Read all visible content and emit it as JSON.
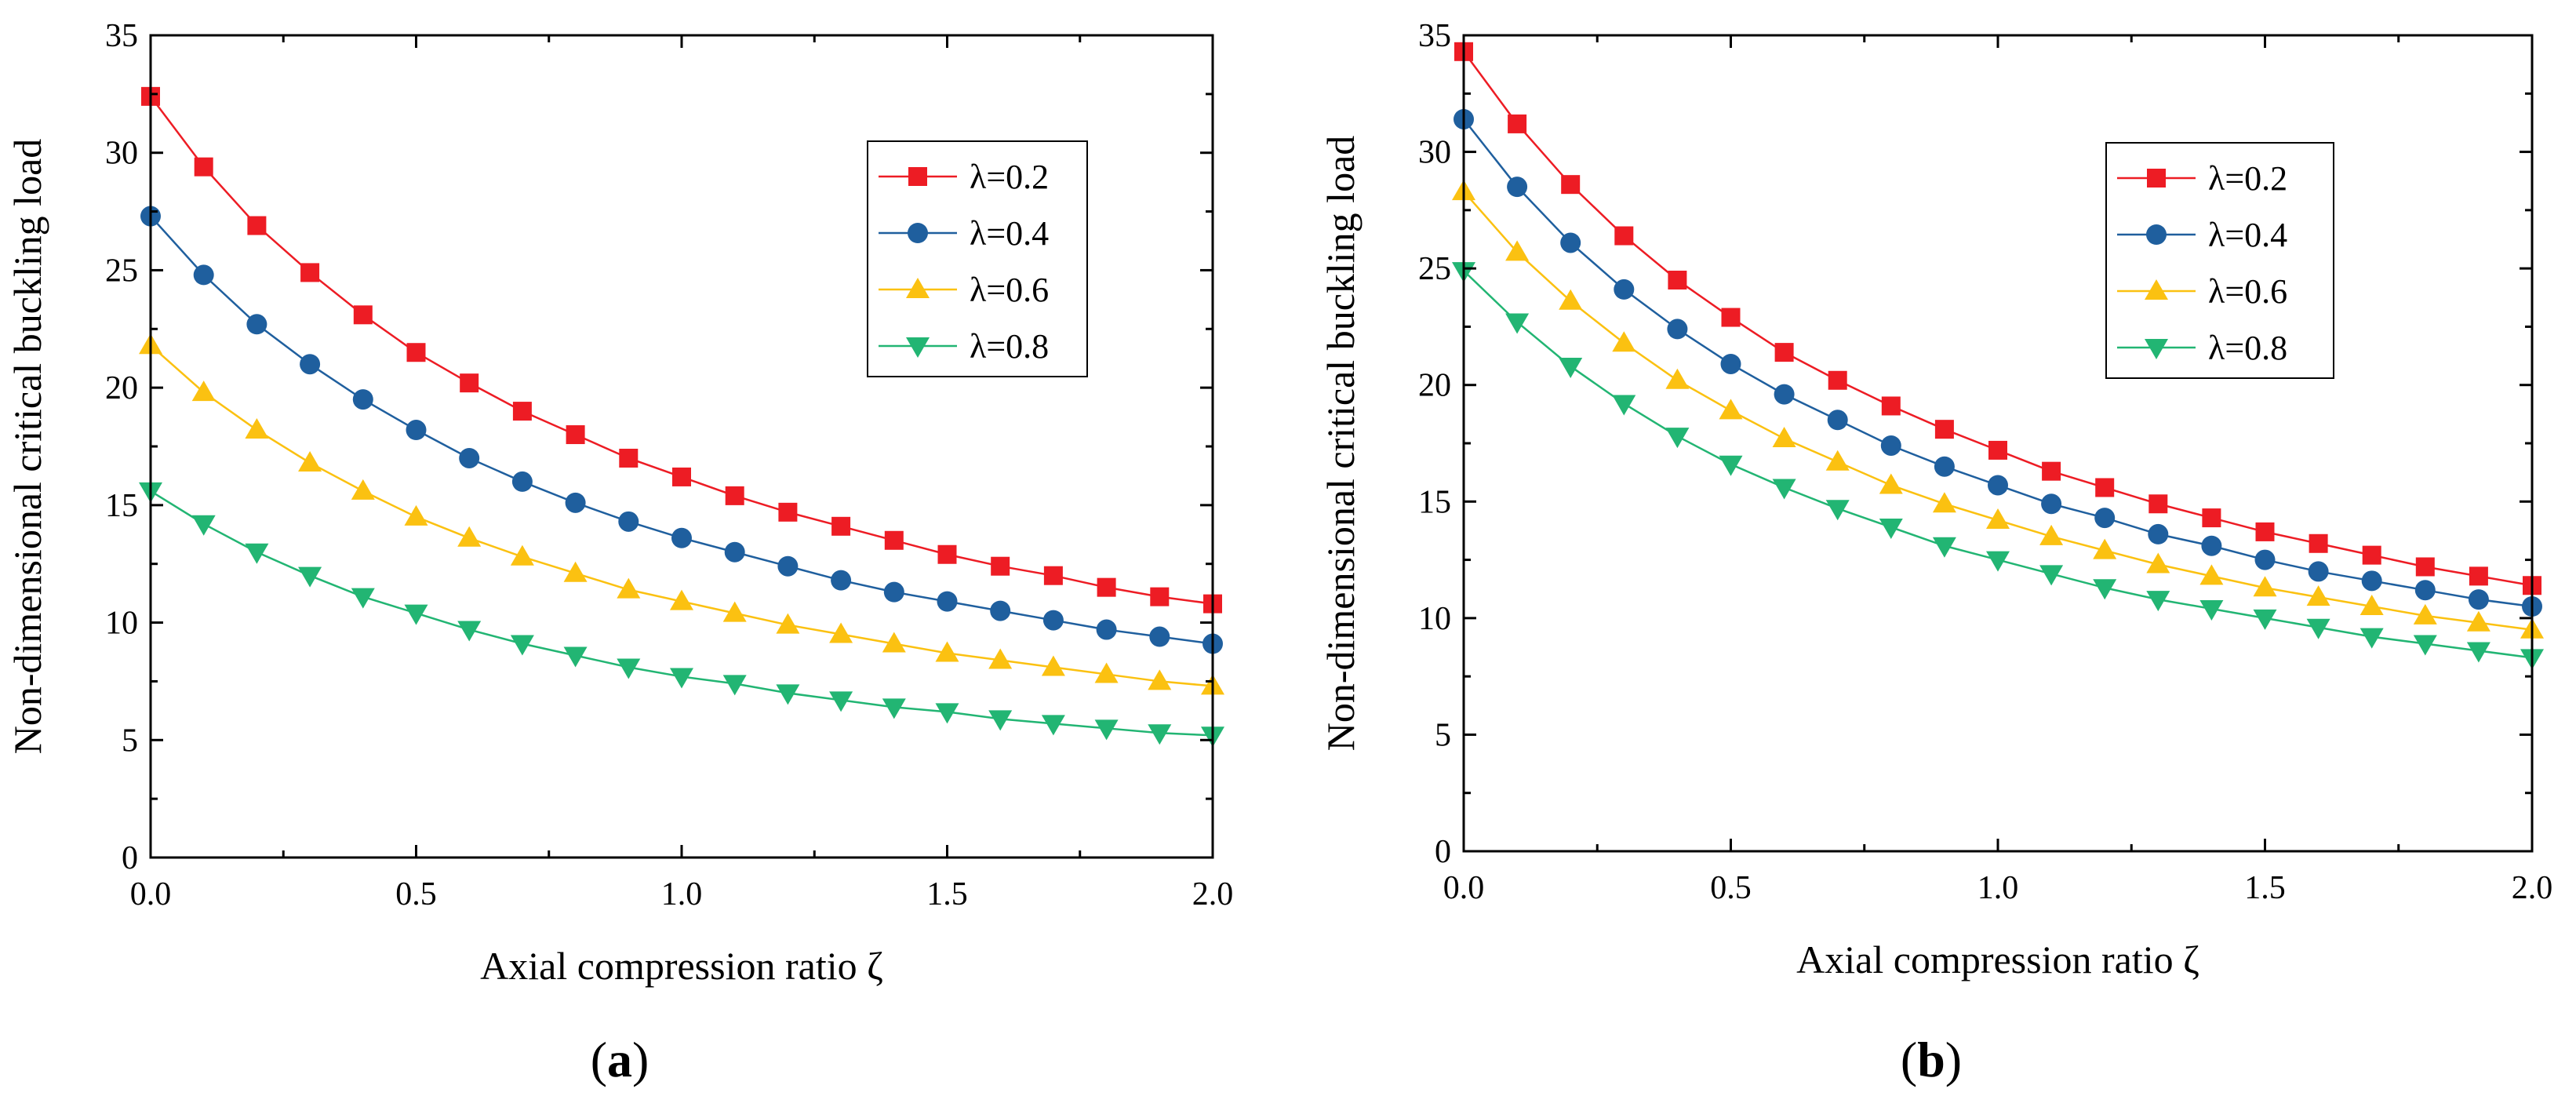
{
  "colors": {
    "red": "#ed1c24",
    "blue": "#1f5f9e",
    "yellow": "#fbc111",
    "green": "#22b573",
    "axis": "#000000"
  },
  "chart_data": [
    {
      "type": "line",
      "panel_label": {
        "open": "(",
        "letter": "a",
        "close": ")"
      },
      "xlabel": "Axial compression ratio ζ",
      "ylabel": "Non-dimensional critical buckling load",
      "xlim": [
        0,
        2.0
      ],
      "ylim": [
        0,
        35
      ],
      "xticks": [
        0.0,
        0.5,
        1.0,
        1.5,
        2.0
      ],
      "xtick_labels": [
        "0.0",
        "0.5",
        "1.0",
        "1.5",
        "2.0"
      ],
      "yticks": [
        0,
        5,
        10,
        15,
        20,
        25,
        30,
        35
      ],
      "ytick_labels": [
        "0",
        "5",
        "10",
        "15",
        "20",
        "25",
        "30",
        "35"
      ],
      "legend_position": "top-right",
      "x": [
        0.0,
        0.1,
        0.2,
        0.3,
        0.4,
        0.5,
        0.6,
        0.7,
        0.8,
        0.9,
        1.0,
        1.1,
        1.2,
        1.3,
        1.4,
        1.5,
        1.6,
        1.7,
        1.8,
        1.9,
        2.0
      ],
      "series": [
        {
          "name": "λ=0.2",
          "color": "#ed1c24",
          "marker": "square",
          "values": [
            32.4,
            29.4,
            26.9,
            24.9,
            23.1,
            21.5,
            20.2,
            19.0,
            18.0,
            17.0,
            16.2,
            15.4,
            14.7,
            14.1,
            13.5,
            12.9,
            12.4,
            12.0,
            11.5,
            11.1,
            10.8
          ]
        },
        {
          "name": "λ=0.4",
          "color": "#1f5f9e",
          "marker": "circle",
          "values": [
            27.3,
            24.8,
            22.7,
            21.0,
            19.5,
            18.2,
            17.0,
            16.0,
            15.1,
            14.3,
            13.6,
            13.0,
            12.4,
            11.8,
            11.3,
            10.9,
            10.5,
            10.1,
            9.7,
            9.4,
            9.1
          ]
        },
        {
          "name": "λ=0.6",
          "color": "#fbc111",
          "marker": "triangle-up",
          "values": [
            21.8,
            19.8,
            18.2,
            16.8,
            15.6,
            14.5,
            13.6,
            12.8,
            12.1,
            11.4,
            10.9,
            10.4,
            9.9,
            9.5,
            9.1,
            8.7,
            8.4,
            8.1,
            7.8,
            7.5,
            7.3
          ]
        },
        {
          "name": "λ=0.8",
          "color": "#22b573",
          "marker": "triangle-down",
          "values": [
            15.6,
            14.2,
            13.0,
            12.0,
            11.1,
            10.4,
            9.7,
            9.1,
            8.6,
            8.1,
            7.7,
            7.4,
            7.0,
            6.7,
            6.4,
            6.2,
            5.9,
            5.7,
            5.5,
            5.3,
            5.2
          ]
        }
      ]
    },
    {
      "type": "line",
      "panel_label": {
        "open": "(",
        "letter": "b",
        "close": ")"
      },
      "xlabel": "Axial compression ratio ζ",
      "ylabel": "Non-dimensional critical buckling load",
      "xlim": [
        0,
        2.0
      ],
      "ylim": [
        0,
        35
      ],
      "xticks": [
        0.0,
        0.5,
        1.0,
        1.5,
        2.0
      ],
      "xtick_labels": [
        "0.0",
        "0.5",
        "1.0",
        "1.5",
        "2.0"
      ],
      "yticks": [
        0,
        5,
        10,
        15,
        20,
        25,
        30,
        35
      ],
      "ytick_labels": [
        "0",
        "5",
        "10",
        "15",
        "20",
        "25",
        "30",
        "35"
      ],
      "legend_position": "top-right",
      "x": [
        0.0,
        0.1,
        0.2,
        0.3,
        0.4,
        0.5,
        0.6,
        0.7,
        0.8,
        0.9,
        1.0,
        1.1,
        1.2,
        1.3,
        1.4,
        1.5,
        1.6,
        1.7,
        1.8,
        1.9,
        2.0
      ],
      "series": [
        {
          "name": "λ=0.2",
          "color": "#ed1c24",
          "marker": "square",
          "values": [
            34.3,
            31.2,
            28.6,
            26.4,
            24.5,
            22.9,
            21.4,
            20.2,
            19.1,
            18.1,
            17.2,
            16.3,
            15.6,
            14.9,
            14.3,
            13.7,
            13.2,
            12.7,
            12.2,
            11.8,
            11.4
          ]
        },
        {
          "name": "λ=0.4",
          "color": "#1f5f9e",
          "marker": "circle",
          "values": [
            31.4,
            28.5,
            26.1,
            24.1,
            22.4,
            20.9,
            19.6,
            18.5,
            17.4,
            16.5,
            15.7,
            14.9,
            14.3,
            13.6,
            13.1,
            12.5,
            12.0,
            11.6,
            11.2,
            10.8,
            10.5
          ]
        },
        {
          "name": "λ=0.6",
          "color": "#fbc111",
          "marker": "triangle-up",
          "values": [
            28.3,
            25.7,
            23.6,
            21.8,
            20.2,
            18.9,
            17.7,
            16.7,
            15.7,
            14.9,
            14.2,
            13.5,
            12.9,
            12.3,
            11.8,
            11.3,
            10.9,
            10.5,
            10.1,
            9.8,
            9.5
          ]
        },
        {
          "name": "λ=0.8",
          "color": "#22b573",
          "marker": "triangle-down",
          "values": [
            24.9,
            22.7,
            20.8,
            19.2,
            17.8,
            16.6,
            15.6,
            14.7,
            13.9,
            13.1,
            12.5,
            11.9,
            11.3,
            10.8,
            10.4,
            10.0,
            9.6,
            9.2,
            8.9,
            8.6,
            8.3
          ]
        }
      ]
    }
  ]
}
